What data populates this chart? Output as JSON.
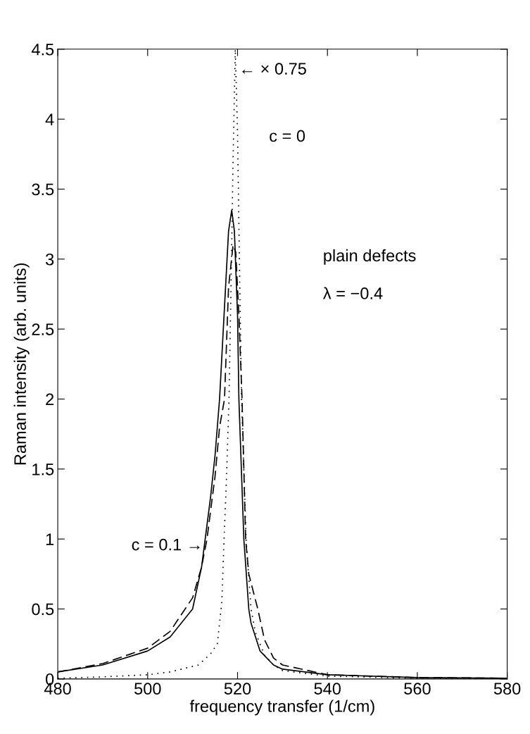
{
  "chart_data": {
    "type": "line",
    "xlabel": "frequency transfer (1/cm)",
    "ylabel": "Raman intensity (arb. units)",
    "xlim": [
      480,
      580
    ],
    "xticks": [
      480,
      500,
      520,
      540,
      560,
      580
    ],
    "ylim": [
      0,
      4.5
    ],
    "yticks": [
      0,
      0.5,
      1,
      1.5,
      2,
      2.5,
      3,
      3.5,
      4,
      4.5
    ],
    "grid": false,
    "series": [
      {
        "color": "#000000",
        "line_style": "solid",
        "x": [
          480,
          490,
          500,
          505,
          510,
          512,
          512.8,
          514,
          515,
          516,
          517,
          518,
          518.7,
          519.3,
          520,
          520.3,
          521.4,
          522.5,
          523,
          525,
          528,
          530,
          540,
          560,
          580
        ],
        "values": [
          0.05,
          0.1,
          0.2,
          0.3,
          0.5,
          0.8,
          1.0,
          1.3,
          1.6,
          2.0,
          2.6,
          3.2,
          3.35,
          3.2,
          2.6,
          2.0,
          1.0,
          0.5,
          0.4,
          0.2,
          0.1,
          0.07,
          0.03,
          0.01,
          0.005
        ]
      },
      {
        "color": "#000000",
        "line_style": "dashed",
        "x": [
          480,
          490,
          500,
          505,
          510,
          512,
          513.2,
          514,
          515,
          516,
          517.1,
          518,
          519,
          519.6,
          520.3,
          521,
          521.8,
          522.5,
          524.5,
          526,
          528,
          530,
          540,
          560,
          580
        ],
        "values": [
          0.05,
          0.11,
          0.22,
          0.34,
          0.58,
          0.8,
          1.0,
          1.2,
          1.45,
          1.8,
          2.0,
          2.8,
          3.1,
          3.05,
          2.6,
          2.0,
          1.0,
          0.75,
          0.5,
          0.28,
          0.15,
          0.1,
          0.03,
          0.01,
          0.005
        ]
      },
      {
        "color": "#000000",
        "line_style": "dotted",
        "x": [
          480,
          490,
          500,
          505,
          511.3,
          514,
          515.5,
          516.5,
          517,
          517.5,
          518.1,
          518.6,
          519,
          519.5,
          520,
          520.5,
          520.9,
          521.5,
          521.9,
          523,
          524,
          526,
          528,
          530,
          540,
          560,
          580
        ],
        "values": [
          0.005,
          0.015,
          0.03,
          0.05,
          0.1,
          0.18,
          0.25,
          0.55,
          1.0,
          1.4,
          2.0,
          2.9,
          3.7,
          4.5,
          3.9,
          2.8,
          2.0,
          1.4,
          1.0,
          0.5,
          0.33,
          0.17,
          0.1,
          0.06,
          0.02,
          0.005,
          0.002
        ]
      }
    ],
    "annotations": [
      {
        "text": "← × 0.75",
        "x": 520.3,
        "y": 4.35
      },
      "c = 0",
      "plain defects",
      "λ = −0.4",
      {
        "text": "c = 0.1 →",
        "x": 512.3,
        "y": 0.95
      }
    ]
  }
}
